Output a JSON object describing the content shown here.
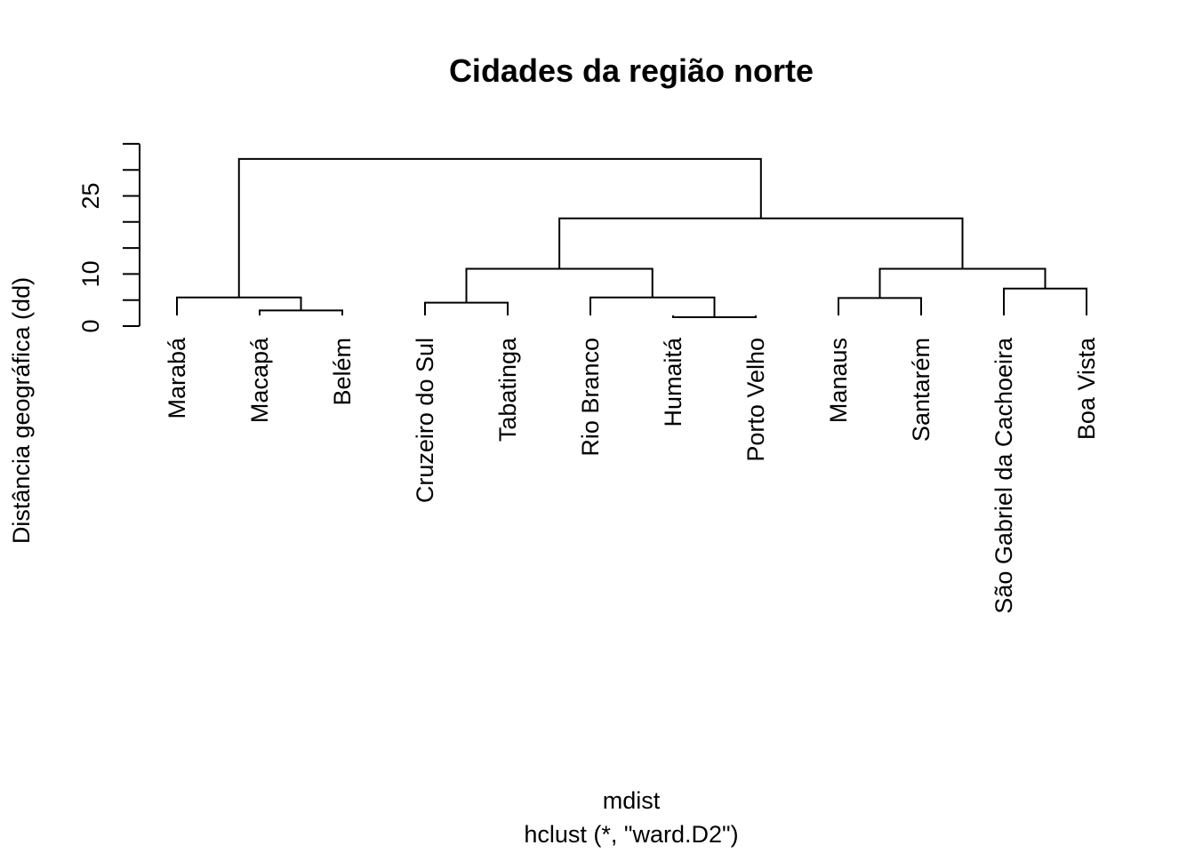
{
  "chart_data": {
    "type": "dendrogram",
    "title": "Cidades da região norte",
    "xlabel": "mdist",
    "sublabel": "hclust (*, \"ward.D2\")",
    "ylabel": "Distância geográfica (dd)",
    "ylim": [
      0,
      36
    ],
    "yticks": [
      0,
      5,
      10,
      15,
      20,
      25,
      30,
      35
    ],
    "ytick_labels": [
      {
        "value": 0,
        "label": "0"
      },
      {
        "value": 10,
        "label": "10"
      },
      {
        "value": 25,
        "label": "25"
      }
    ],
    "leaves": [
      {
        "label": "Marabá",
        "height": 5.5
      },
      {
        "label": "Macapá",
        "height": 3.0
      },
      {
        "label": "Belém",
        "height": 3.0
      },
      {
        "label": "Cruzeiro do Sul",
        "height": 4.5
      },
      {
        "label": "Tabatinga",
        "height": 4.5
      },
      {
        "label": "Rio Branco",
        "height": 5.5
      },
      {
        "label": "Humaitá",
        "height": 1.7
      },
      {
        "label": "Porto Velho",
        "height": 1.7
      },
      {
        "label": "Manaus",
        "height": 5.4
      },
      {
        "label": "Santarém",
        "height": 5.4
      },
      {
        "label": "São Gabriel da Cachoeira",
        "height": 7.2
      },
      {
        "label": "Boa Vista",
        "height": 7.2
      }
    ],
    "merges": [
      {
        "left": "L6",
        "right": "L7",
        "height": 1.7
      },
      {
        "left": "L1",
        "right": "L2",
        "height": 3.0
      },
      {
        "left": "L3",
        "right": "L4",
        "height": 4.5
      },
      {
        "left": "L8",
        "right": "L9",
        "height": 5.4
      },
      {
        "left": "L0",
        "right": "M1",
        "height": 5.5
      },
      {
        "left": "L5",
        "right": "M0",
        "height": 5.5
      },
      {
        "left": "L10",
        "right": "L11",
        "height": 7.2
      },
      {
        "left": "M2",
        "right": "M5",
        "height": 11.0
      },
      {
        "left": "M3",
        "right": "M6",
        "height": 11.0
      },
      {
        "left": "M7",
        "right": "M8",
        "height": 20.7
      },
      {
        "left": "M4",
        "right": "M9",
        "height": 32.1
      }
    ]
  }
}
